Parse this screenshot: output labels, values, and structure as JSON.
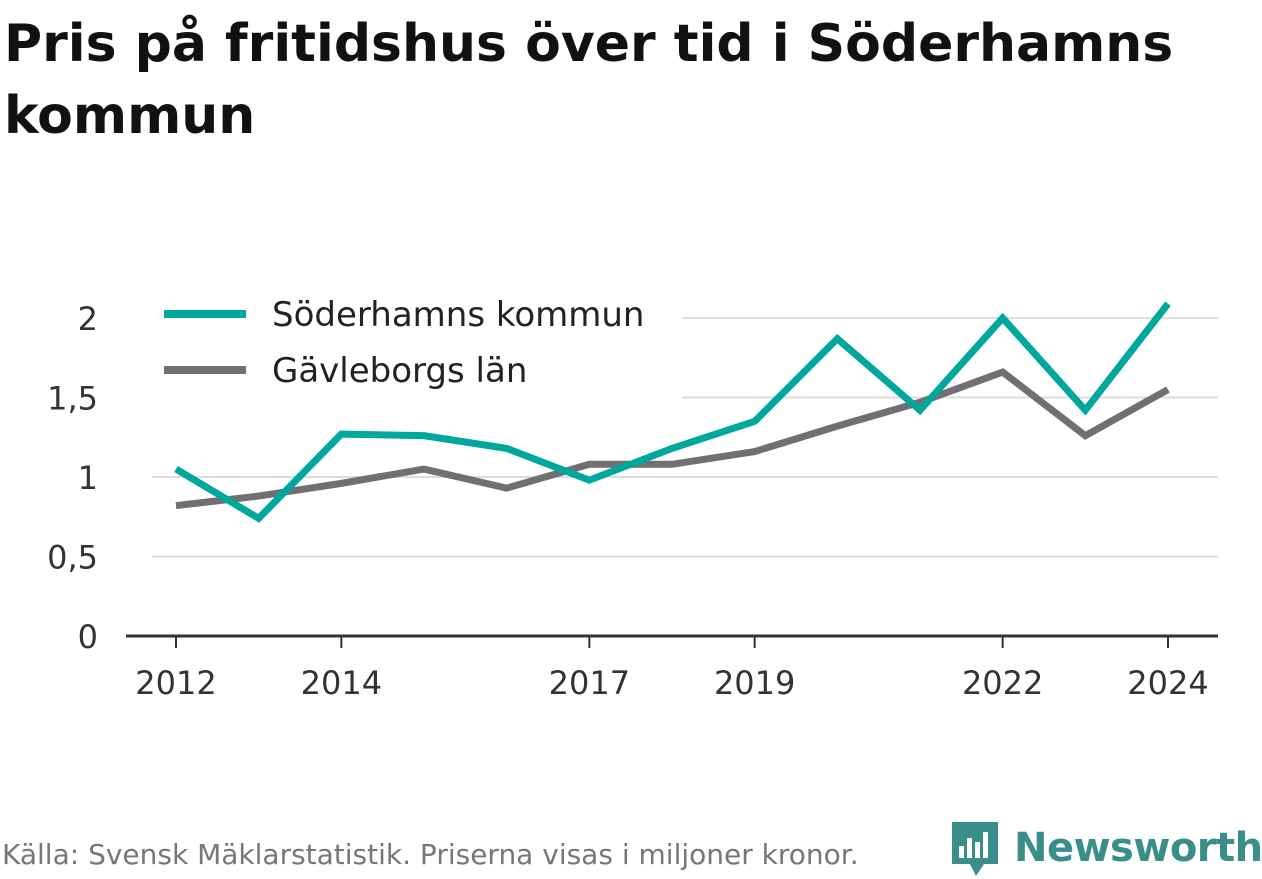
{
  "title": "Pris på fritidshus över tid i Söderhamns kommun",
  "source": "Källa: Svensk Mäklarstatistik. Priserna visas i miljoner kronor.",
  "brand": {
    "name": "Newsworthy",
    "icon": "newsworthy-logo-icon",
    "color": "#3a8e8a"
  },
  "colors": {
    "grid": "#dddddd",
    "axis": "#333333",
    "tick_text": "#333333"
  },
  "chart_data": {
    "type": "line",
    "title": "Pris på fritidshus över tid i Söderhamns kommun",
    "xlabel": "",
    "ylabel": "",
    "x": [
      2012,
      2013,
      2014,
      2015,
      2016,
      2017,
      2018,
      2019,
      2020,
      2021,
      2022,
      2023,
      2024
    ],
    "x_ticks": [
      2012,
      2014,
      2017,
      2019,
      2022,
      2024
    ],
    "x_tick_labels": [
      "2012",
      "2014",
      "2017",
      "2019",
      "2022",
      "2024"
    ],
    "y_ticks": [
      0,
      0.5,
      1,
      1.5,
      2
    ],
    "y_tick_labels": [
      "0",
      "0,5",
      "1",
      "1,5",
      "2"
    ],
    "ylim": [
      0,
      2.1
    ],
    "grid": true,
    "legend_position": "top-left",
    "series": [
      {
        "name": "Söderhamns kommun",
        "color": "#00a79d",
        "values": [
          1.05,
          0.74,
          1.27,
          1.26,
          1.18,
          0.98,
          1.18,
          1.35,
          1.87,
          1.42,
          2.0,
          1.42,
          2.09
        ]
      },
      {
        "name": "Gävleborgs län",
        "color": "#6f6f74",
        "values": [
          0.82,
          0.88,
          0.96,
          1.05,
          0.93,
          1.08,
          1.08,
          1.16,
          1.32,
          1.47,
          1.66,
          1.26,
          1.55
        ]
      }
    ]
  }
}
